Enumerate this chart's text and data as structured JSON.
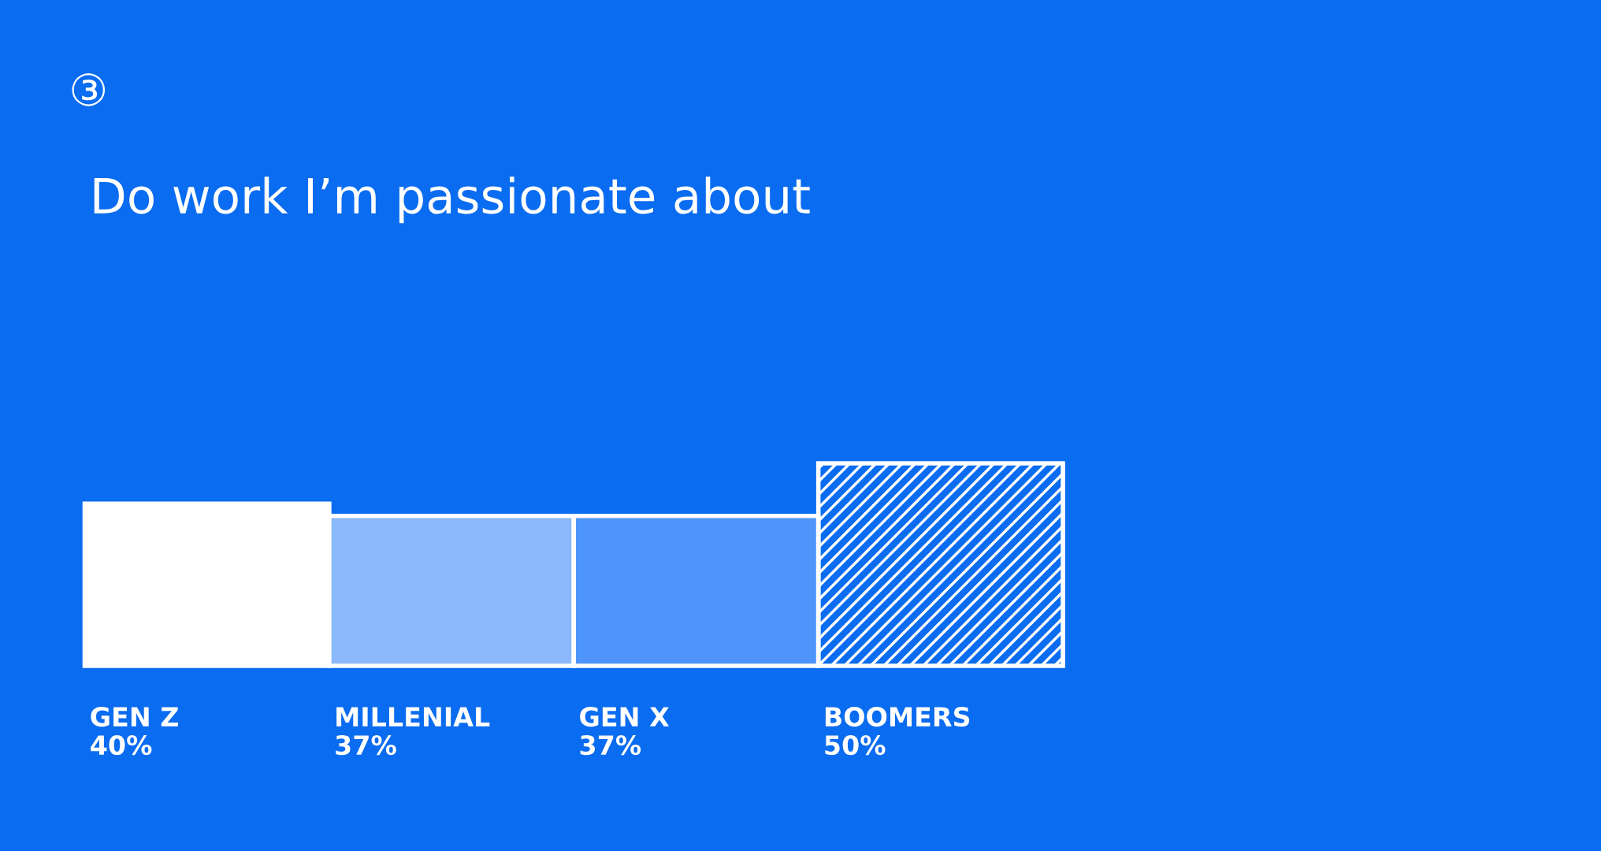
{
  "chart_data": {
    "type": "bar",
    "title": "Do work I’m passionate about",
    "annotations": [
      "③"
    ],
    "categories": [
      "GEN Z",
      "MILLENIAL",
      "GEN X",
      "BOOMERS"
    ],
    "values": [
      40,
      37,
      37,
      50
    ],
    "value_labels": [
      "40%",
      "37%",
      "37%",
      "50%"
    ],
    "colors": [
      "#ffffff",
      "#8ab8fb",
      "#4d94fb",
      null
    ],
    "legend": false
  }
}
